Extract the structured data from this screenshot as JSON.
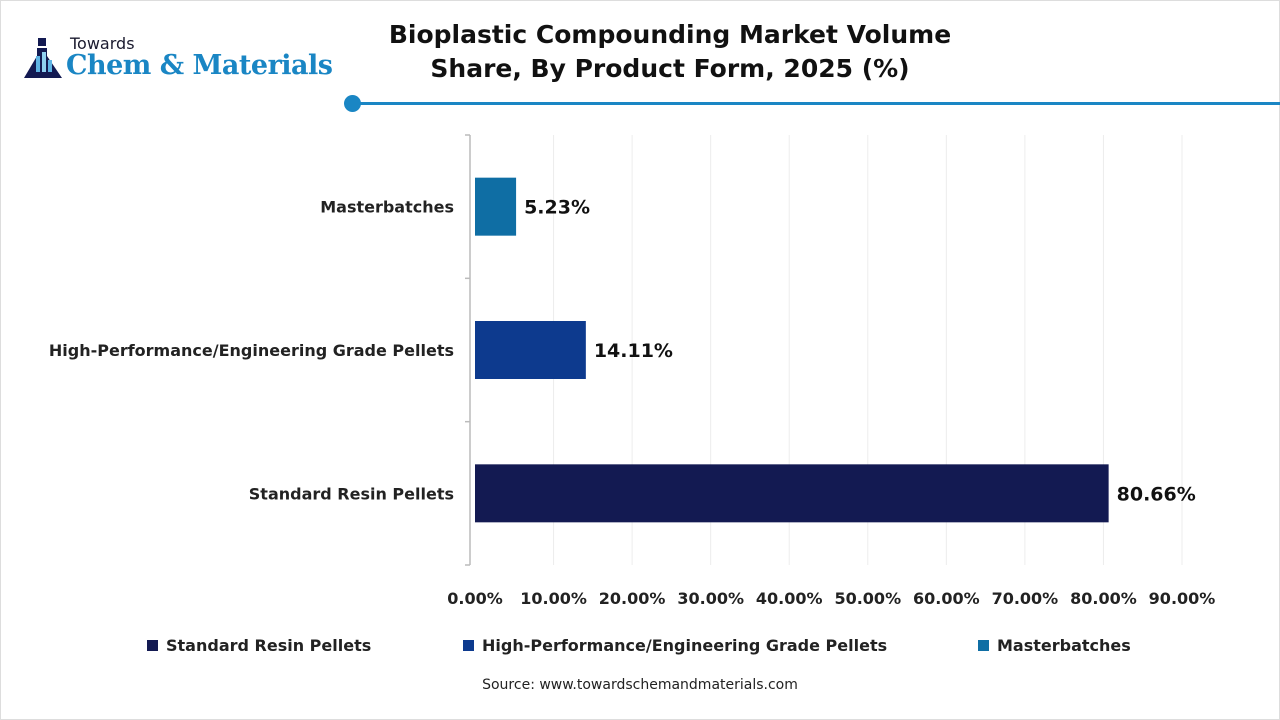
{
  "logo": {
    "line1": "Towards",
    "line2": "Chem & Materials"
  },
  "chart_data": {
    "type": "bar",
    "orientation": "horizontal",
    "title": "Bioplastic Compounding Market Volume Share, By Product Form, 2025 (%)",
    "categories": [
      "Masterbatches",
      "High-Performance/Engineering Grade Pellets",
      "Standard Resin Pellets"
    ],
    "values": [
      5.23,
      14.11,
      80.66
    ],
    "data_labels": [
      "5.23%",
      "14.11%",
      "80.66%"
    ],
    "colors": [
      "#0f6ea4",
      "#0d3a8e",
      "#131a52"
    ],
    "xlim": [
      0,
      90
    ],
    "xticks": [
      "0.00%",
      "10.00%",
      "20.00%",
      "30.00%",
      "40.00%",
      "50.00%",
      "60.00%",
      "70.00%",
      "80.00%",
      "90.00%"
    ],
    "grid": true,
    "legend_position": "bottom",
    "legend": [
      {
        "label": "Standard Resin Pellets",
        "color": "#131a52"
      },
      {
        "label": "High-Performance/Engineering Grade Pellets",
        "color": "#0d3a8e"
      },
      {
        "label": "Masterbatches",
        "color": "#0f6ea4"
      }
    ]
  },
  "source": "Source: www.towardschemandmaterials.com"
}
